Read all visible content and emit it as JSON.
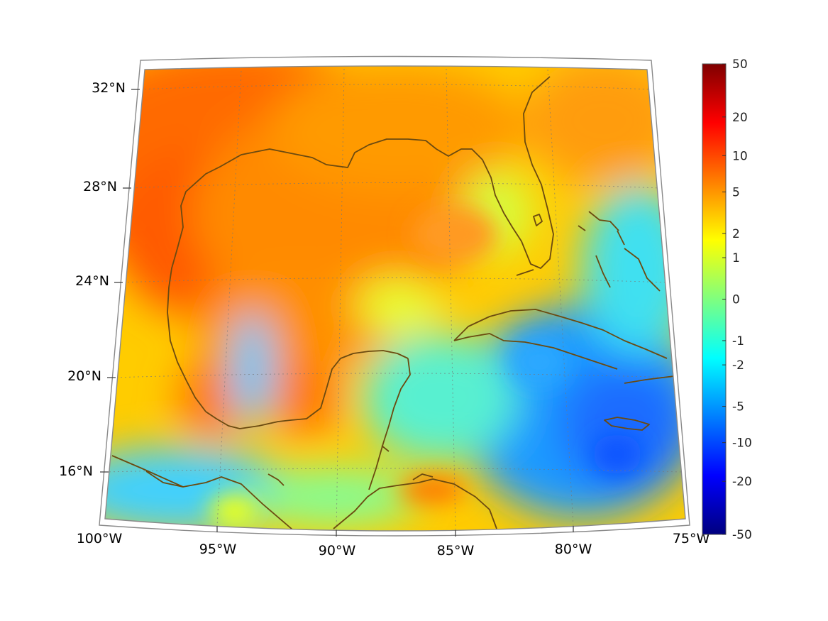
{
  "map": {
    "region": "Gulf of Mexico and Caribbean",
    "projection": "conic",
    "lon_range": [
      -100,
      -75
    ],
    "lat_range": [
      14,
      33
    ],
    "grid": true,
    "coast_color": "#6b4a10",
    "lat_labels": [
      "32°N",
      "28°N",
      "24°N",
      "20°N",
      "16°N"
    ],
    "lon_labels": [
      "100°W",
      "95°W",
      "90°W",
      "85°W",
      "80°W",
      "75°W"
    ]
  },
  "colorbar": {
    "colormap": "jet",
    "scale": "symmetric-log",
    "ticks": [
      "50",
      "20",
      "10",
      "5",
      "2",
      "1",
      "0",
      "-1",
      "-2",
      "-5",
      "-10",
      "-20",
      "-50"
    ],
    "range": [
      -50,
      50
    ]
  },
  "colors": {
    "jet": [
      "#00007f",
      "#0000ff",
      "#007fff",
      "#00ffff",
      "#7fff7f",
      "#ffff00",
      "#ff7f00",
      "#ff0000",
      "#7f0000"
    ],
    "frame": "#888888",
    "grid": "#777777"
  }
}
